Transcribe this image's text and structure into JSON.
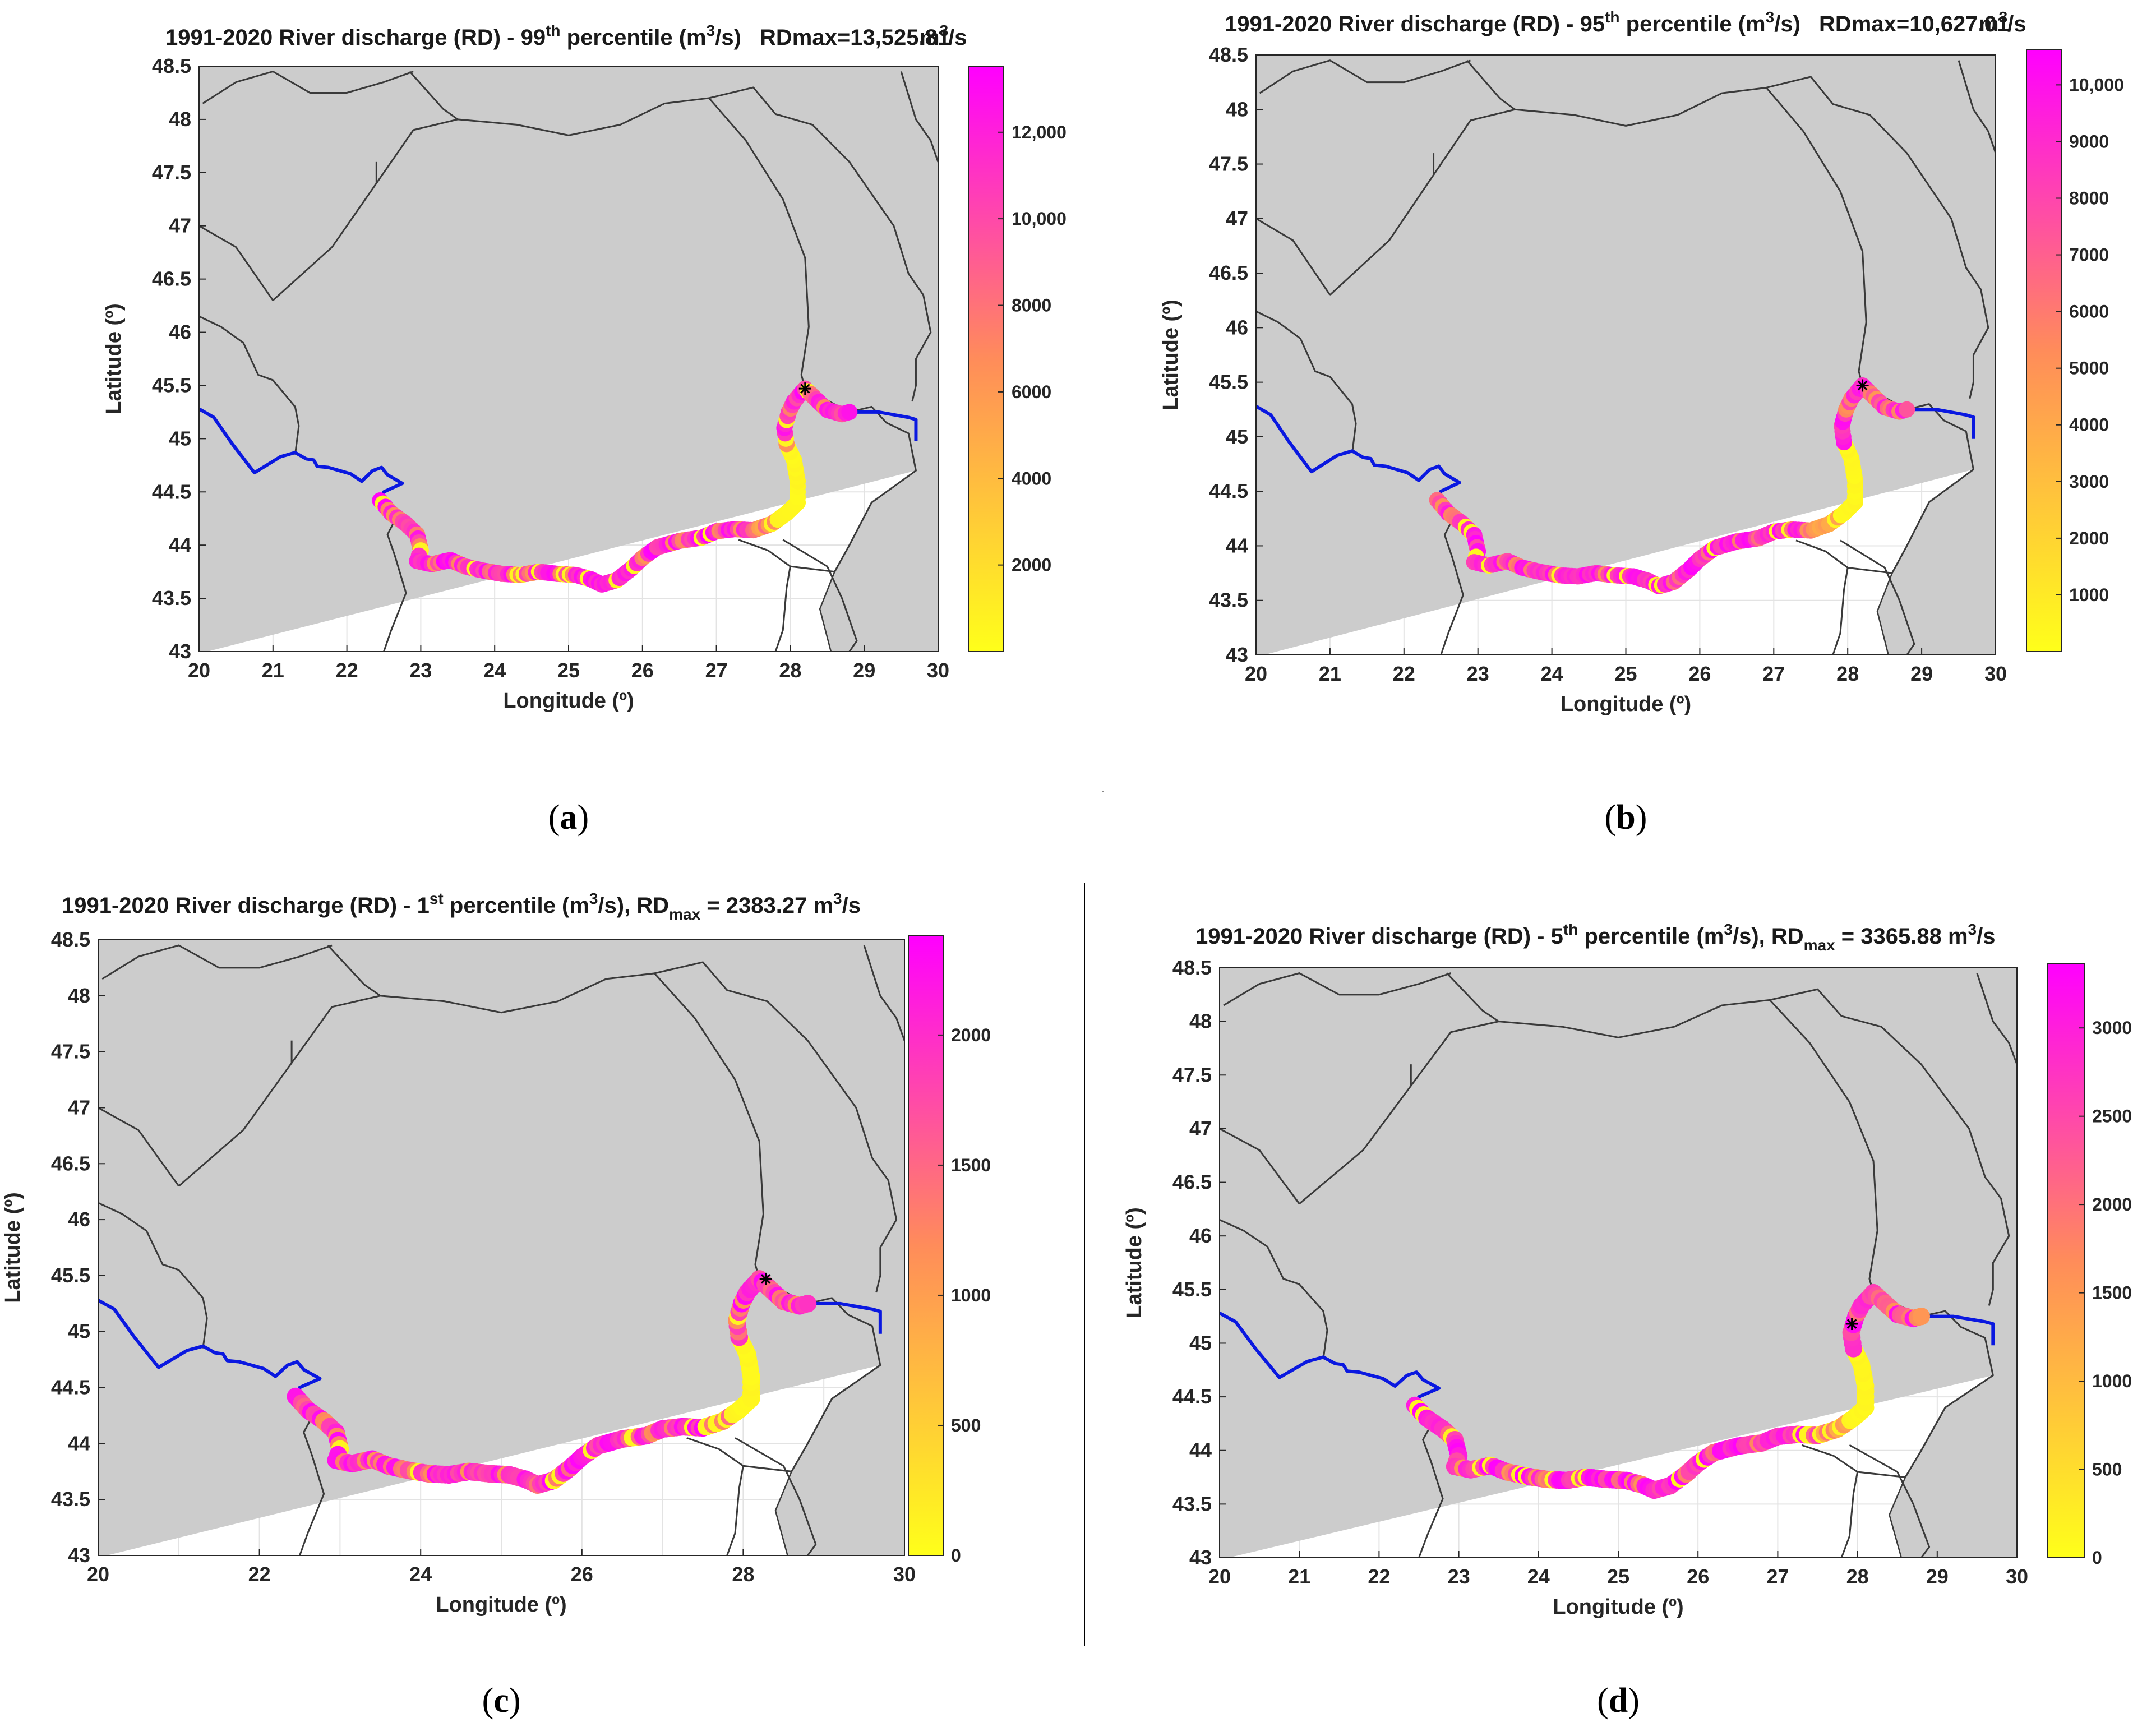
{
  "chart_data": [
    {
      "type": "scatter",
      "panel_label": "a",
      "title_prefix": "1991-2020 River discharge (RD) - 99",
      "title_sup": "th",
      "title_mid": " percentile (m",
      "title_sup2": "3",
      "title_mid2": "/s)",
      "rd_text": "RDmax=13,525.81",
      "rd_unit": "m",
      "rd_unit_sup": "3",
      "rd_unit_tail": "/s",
      "xlabel": "Longitude (º)",
      "ylabel": "Latitude (º)",
      "xlim": [
        20,
        30
      ],
      "ylim": [
        43,
        48.5
      ],
      "xticks": [
        "20",
        "21",
        "22",
        "23",
        "24",
        "25",
        "26",
        "27",
        "28",
        "29",
        "30"
      ],
      "yticks": [
        "43",
        "43.5",
        "44",
        "44.5",
        "45",
        "45.5",
        "46",
        "46.5",
        "47",
        "47.5",
        "48",
        "48.5"
      ],
      "colorbar_max": 13525.81,
      "colorbar_ticks": [
        {
          "value": 2000,
          "label": "2000"
        },
        {
          "value": 4000,
          "label": "4000"
        },
        {
          "value": 6000,
          "label": "6000"
        },
        {
          "value": 8000,
          "label": "8000"
        },
        {
          "value": 10000,
          "label": "10,000"
        },
        {
          "value": 12000,
          "label": "12,000"
        }
      ],
      "max_marker": [
        28.2,
        45.47
      ]
    },
    {
      "type": "scatter",
      "panel_label": "b",
      "title_prefix": "1991-2020 River discharge (RD) - 95",
      "title_sup": "th",
      "title_mid": " percentile (m",
      "title_sup2": "3",
      "title_mid2": "/s)",
      "rd_text": "RDmax=10,627.01",
      "rd_unit": "m",
      "rd_unit_sup": "3",
      "rd_unit_tail": "/s",
      "xlabel": "Longitude (º)",
      "ylabel": "Latitude (º)",
      "xlim": [
        20,
        30
      ],
      "ylim": [
        43,
        48.5
      ],
      "xticks": [
        "20",
        "21",
        "22",
        "23",
        "24",
        "25",
        "26",
        "27",
        "28",
        "29",
        "30"
      ],
      "yticks": [
        "43",
        "43.5",
        "44",
        "44.5",
        "45",
        "45.5",
        "46",
        "46.5",
        "47",
        "47.5",
        "48",
        "48.5"
      ],
      "colorbar_max": 10627.01,
      "colorbar_ticks": [
        {
          "value": 1000,
          "label": "1000"
        },
        {
          "value": 2000,
          "label": "2000"
        },
        {
          "value": 3000,
          "label": "3000"
        },
        {
          "value": 4000,
          "label": "4000"
        },
        {
          "value": 5000,
          "label": "5000"
        },
        {
          "value": 6000,
          "label": "6000"
        },
        {
          "value": 7000,
          "label": "7000"
        },
        {
          "value": 8000,
          "label": "8000"
        },
        {
          "value": 9000,
          "label": "9000"
        },
        {
          "value": 10000,
          "label": "10,000"
        }
      ],
      "max_marker": [
        28.2,
        45.47
      ]
    },
    {
      "type": "scatter",
      "panel_label": "c",
      "title_prefix": "1991-2020 River discharge (RD) - 1",
      "title_sup": "st",
      "title_mid": " percentile (m",
      "title_sup2": "3",
      "title_mid2": "/s), RD",
      "title_sub": "max",
      "title_tail": " = 2383.27 m",
      "title_sup3": "3",
      "title_end": "/s",
      "xlabel": "Longitude (º)",
      "ylabel": "Latitude (º)",
      "xlim": [
        20,
        30
      ],
      "ylim": [
        43,
        48.5
      ],
      "xticks": [
        "20",
        "22",
        "24",
        "26",
        "28",
        "30"
      ],
      "yticks": [
        "43",
        "43.5",
        "44",
        "44.5",
        "45",
        "45.5",
        "46",
        "46.5",
        "47",
        "47.5",
        "48",
        "48.5"
      ],
      "colorbar_max": 2383.27,
      "colorbar_ticks": [
        {
          "value": 0,
          "label": "0"
        },
        {
          "value": 500,
          "label": "500"
        },
        {
          "value": 1000,
          "label": "1000"
        },
        {
          "value": 1500,
          "label": "1500"
        },
        {
          "value": 2000,
          "label": "2000"
        }
      ],
      "max_marker": [
        28.28,
        45.47
      ]
    },
    {
      "type": "scatter",
      "panel_label": "d",
      "title_prefix": "1991-2020 River discharge (RD) - 5",
      "title_sup": "th",
      "title_mid": " percentile (m",
      "title_sup2": "3",
      "title_mid2": "/s), RD",
      "title_sub": "max",
      "title_tail": " = 3365.88 m",
      "title_sup3": "3",
      "title_end": "/s",
      "xlabel": "Longitude (º)",
      "ylabel": "Latitude (º)",
      "xlim": [
        20,
        30
      ],
      "ylim": [
        43,
        48.5
      ],
      "xticks": [
        "20",
        "21",
        "22",
        "23",
        "24",
        "25",
        "26",
        "27",
        "28",
        "29",
        "30"
      ],
      "yticks": [
        "43",
        "43.5",
        "44",
        "44.5",
        "45",
        "45.5",
        "46",
        "46.5",
        "47",
        "47.5",
        "48",
        "48.5"
      ],
      "colorbar_max": 3365.88,
      "colorbar_ticks": [
        {
          "value": 0,
          "label": "0"
        },
        {
          "value": 500,
          "label": "500"
        },
        {
          "value": 1000,
          "label": "1000"
        },
        {
          "value": 1500,
          "label": "1500"
        },
        {
          "value": 2000,
          "label": "2000"
        },
        {
          "value": 2500,
          "label": "2500"
        },
        {
          "value": 3000,
          "label": "3000"
        }
      ],
      "max_marker": [
        27.93,
        45.18
      ]
    }
  ],
  "colors": {
    "land": "#cccccc",
    "border": "#3a3a3a",
    "river_outside": "#0a18e0",
    "low": "#ffff1a",
    "mid": "#ff8c5a",
    "high": "#ff00ff",
    "grid": "#e3e3e3"
  },
  "river_blue_west": [
    [
      20,
      45.28
    ],
    [
      20.2,
      45.2
    ],
    [
      20.45,
      44.95
    ],
    [
      20.75,
      44.68
    ],
    [
      21.1,
      44.83
    ],
    [
      21.3,
      44.87
    ],
    [
      21.45,
      44.81
    ],
    [
      21.55,
      44.8
    ],
    [
      21.6,
      44.74
    ],
    [
      21.75,
      44.73
    ],
    [
      21.9,
      44.7
    ],
    [
      22.05,
      44.67
    ],
    [
      22.2,
      44.6
    ],
    [
      22.35,
      44.7
    ],
    [
      22.47,
      44.73
    ],
    [
      22.55,
      44.66
    ],
    [
      22.75,
      44.58
    ],
    [
      22.5,
      44.5
    ],
    [
      22.45,
      44.42
    ]
  ],
  "river_blue_east": [
    [
      28.8,
      45.25
    ],
    [
      29.2,
      45.25
    ],
    [
      29.6,
      45.2
    ],
    [
      29.7,
      45.18
    ],
    [
      29.7,
      44.98
    ]
  ],
  "river_colored": [
    [
      22.45,
      44.42
    ],
    [
      22.6,
      44.3
    ],
    [
      22.8,
      44.2
    ],
    [
      22.95,
      44.1
    ],
    [
      23.0,
      43.95
    ],
    [
      22.95,
      43.85
    ],
    [
      23.15,
      43.82
    ],
    [
      23.4,
      43.86
    ],
    [
      23.6,
      43.8
    ],
    [
      23.85,
      43.76
    ],
    [
      24.1,
      43.73
    ],
    [
      24.35,
      43.72
    ],
    [
      24.6,
      43.75
    ],
    [
      24.85,
      43.73
    ],
    [
      25.1,
      43.72
    ],
    [
      25.3,
      43.68
    ],
    [
      25.45,
      43.63
    ],
    [
      25.65,
      43.67
    ],
    [
      25.85,
      43.78
    ],
    [
      26.0,
      43.88
    ],
    [
      26.2,
      43.98
    ],
    [
      26.5,
      44.04
    ],
    [
      26.8,
      44.07
    ],
    [
      27.0,
      44.13
    ],
    [
      27.25,
      44.15
    ],
    [
      27.5,
      44.14
    ],
    [
      27.75,
      44.2
    ],
    [
      27.95,
      44.3
    ],
    [
      28.1,
      44.4
    ],
    [
      28.1,
      44.6
    ],
    [
      28.05,
      44.8
    ],
    [
      27.95,
      44.95
    ],
    [
      27.92,
      45.1
    ],
    [
      27.98,
      45.25
    ],
    [
      28.05,
      45.35
    ],
    [
      28.2,
      45.47
    ],
    [
      28.35,
      45.37
    ],
    [
      28.5,
      45.27
    ],
    [
      28.7,
      45.23
    ],
    [
      28.8,
      45.25
    ]
  ],
  "romania_outline": [
    [
      21.0,
      46.3
    ],
    [
      21.8,
      46.8
    ],
    [
      22.4,
      47.4
    ],
    [
      22.9,
      47.9
    ],
    [
      23.5,
      48.0
    ],
    [
      24.3,
      47.95
    ],
    [
      25.0,
      47.85
    ],
    [
      25.7,
      47.95
    ],
    [
      26.3,
      48.15
    ],
    [
      26.9,
      48.2
    ],
    [
      27.4,
      47.8
    ],
    [
      27.9,
      47.25
    ],
    [
      28.2,
      46.7
    ],
    [
      28.25,
      46.05
    ],
    [
      28.15,
      45.6
    ],
    [
      28.2,
      45.47
    ],
    [
      28.8,
      45.25
    ],
    [
      29.1,
      45.3
    ],
    [
      29.3,
      45.15
    ],
    [
      29.6,
      45.05
    ],
    [
      29.7,
      44.7
    ],
    [
      29.1,
      44.4
    ],
    [
      28.8,
      44.0
    ],
    [
      28.6,
      43.75
    ],
    [
      28.0,
      43.8
    ],
    [
      27.7,
      43.95
    ],
    [
      27.3,
      44.05
    ]
  ],
  "border_lines": [
    [
      [
        20.0,
        46.15
      ],
      [
        20.3,
        46.05
      ],
      [
        20.6,
        45.9
      ],
      [
        20.8,
        45.6
      ],
      [
        21.0,
        45.55
      ],
      [
        21.3,
        45.3
      ],
      [
        21.35,
        45.12
      ],
      [
        21.3,
        44.85
      ]
    ],
    [
      [
        20.05,
        48.15
      ],
      [
        20.5,
        48.35
      ],
      [
        21.0,
        48.45
      ],
      [
        21.5,
        48.25
      ],
      [
        22.0,
        48.25
      ],
      [
        22.5,
        48.35
      ],
      [
        22.9,
        48.45
      ]
    ],
    [
      [
        20.0,
        47.0
      ],
      [
        20.5,
        46.8
      ],
      [
        21.0,
        46.3
      ]
    ],
    [
      [
        22.85,
        48.45
      ],
      [
        23.3,
        48.1
      ],
      [
        23.5,
        48.0
      ]
    ],
    [
      [
        22.4,
        47.6
      ],
      [
        22.4,
        47.4
      ]
    ],
    [
      [
        26.9,
        48.2
      ],
      [
        27.5,
        48.3
      ],
      [
        27.8,
        48.05
      ],
      [
        28.3,
        47.95
      ],
      [
        28.8,
        47.6
      ],
      [
        29.1,
        47.3
      ],
      [
        29.4,
        47.0
      ],
      [
        29.6,
        46.55
      ],
      [
        29.8,
        46.35
      ],
      [
        29.9,
        46.0
      ],
      [
        29.7,
        45.75
      ],
      [
        29.7,
        45.5
      ],
      [
        29.65,
        45.35
      ]
    ],
    [
      [
        29.5,
        48.45
      ],
      [
        29.7,
        48.0
      ],
      [
        29.9,
        47.8
      ],
      [
        30.0,
        47.6
      ]
    ],
    [
      [
        22.7,
        44.3
      ],
      [
        22.55,
        44.1
      ],
      [
        22.65,
        43.9
      ],
      [
        22.8,
        43.55
      ],
      [
        22.6,
        43.2
      ],
      [
        22.5,
        43.0
      ]
    ],
    [
      [
        27.9,
        44.05
      ],
      [
        28.5,
        43.8
      ],
      [
        28.7,
        43.5
      ],
      [
        28.9,
        43.1
      ],
      [
        28.8,
        43.0
      ]
    ],
    [
      [
        28.0,
        43.8
      ],
      [
        27.95,
        43.6
      ],
      [
        27.9,
        43.2
      ],
      [
        27.8,
        43.0
      ]
    ]
  ]
}
